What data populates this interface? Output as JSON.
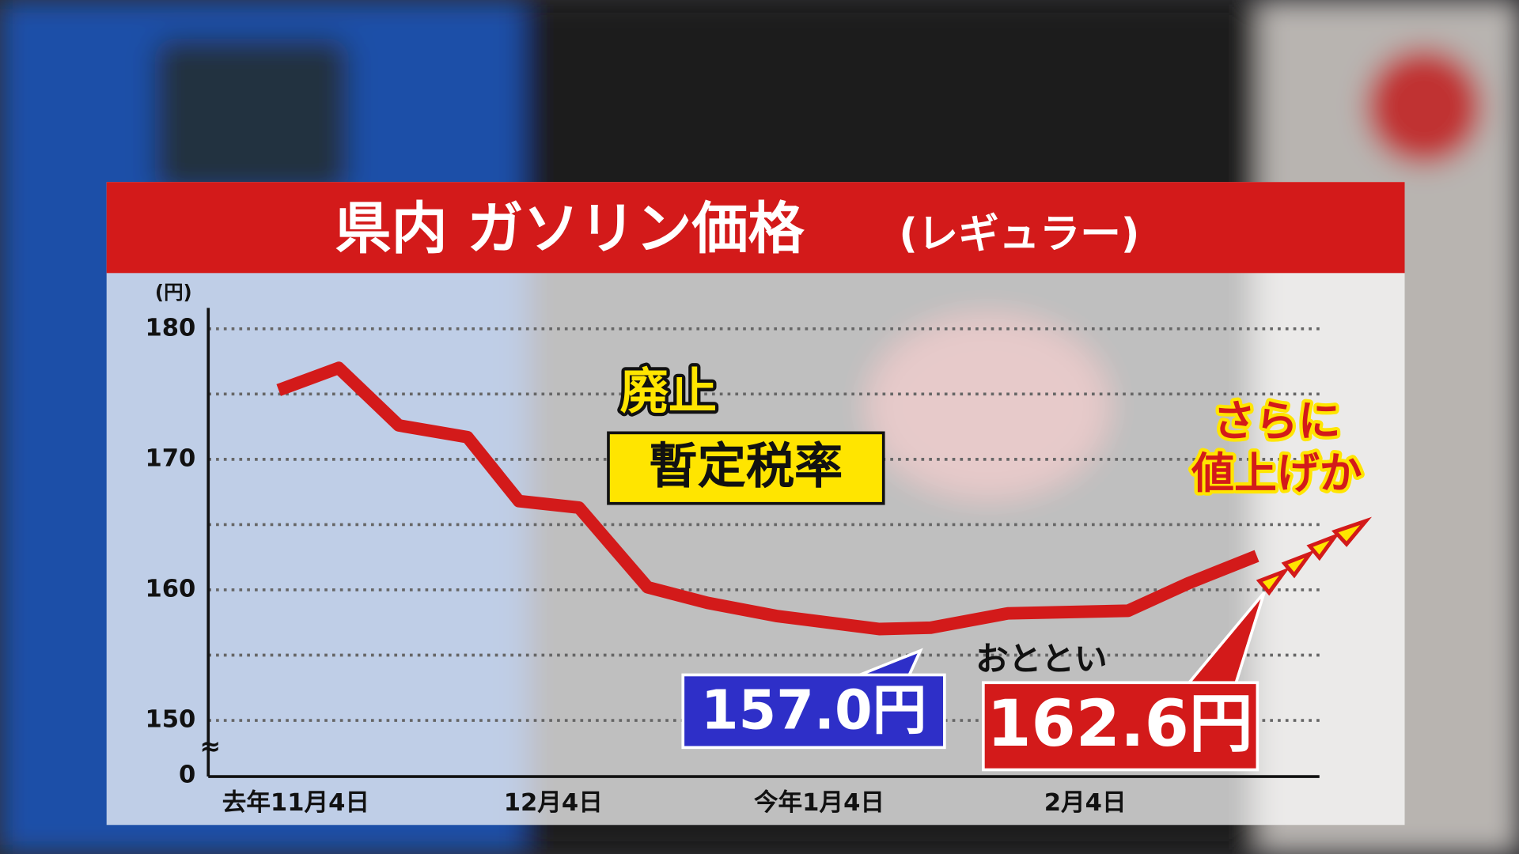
{
  "chart_data": {
    "type": "line",
    "title": "県内 ガソリン価格",
    "title_suffix": "(レギュラー)",
    "y_unit": "(円)",
    "axis_origin_label": "0",
    "x": [
      -2,
      5,
      12,
      20,
      26,
      33,
      41,
      48,
      56,
      68,
      74,
      83,
      97,
      104,
      112
    ],
    "values": [
      175.3,
      177.0,
      172.6,
      171.7,
      166.8,
      166.3,
      160.2,
      159.0,
      158.0,
      157.0,
      157.1,
      158.2,
      158.4,
      160.5,
      162.6
    ],
    "value_labels": [
      null,
      null,
      null,
      null,
      null,
      null,
      null,
      null,
      null,
      "157.0円",
      null,
      null,
      null,
      null,
      "162.6円"
    ],
    "color": "#d31a1a",
    "xlim": [
      -10.2,
      119.3
    ],
    "xticks": [
      {
        "value": 0,
        "label": "去年11月4日"
      },
      {
        "value": 30,
        "label": "12月4日"
      },
      {
        "value": 61,
        "label": "今年1月4日"
      },
      {
        "value": 92,
        "label": "2月4日"
      }
    ],
    "ylim": [
      145.7,
      181.6
    ],
    "yticks": [
      150,
      160,
      170,
      180
    ],
    "minor_yticks": [
      155,
      165,
      175
    ],
    "grid": true,
    "annotations": {
      "abolish": "廃止",
      "tax": "暫定税率",
      "day_before": "おととい",
      "further_1": "さらに",
      "further_2": "値上げか"
    }
  }
}
